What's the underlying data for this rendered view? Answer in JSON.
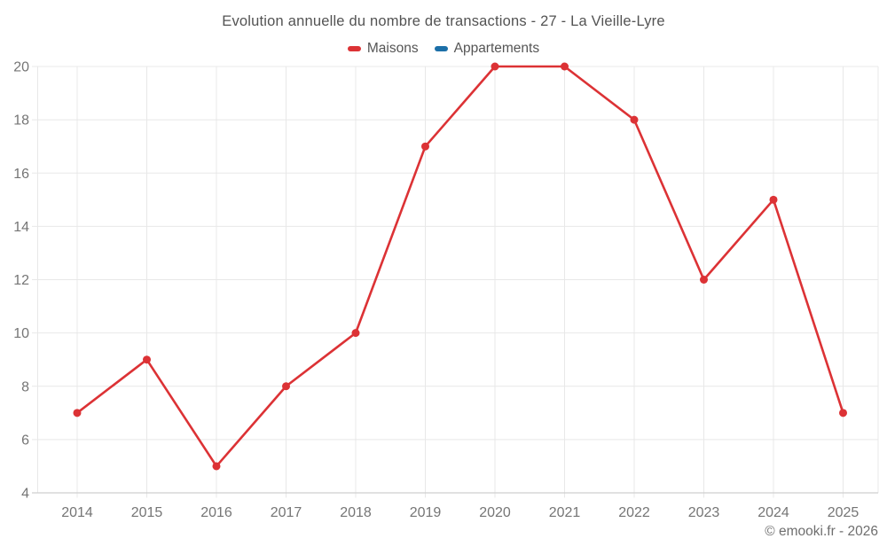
{
  "page": {
    "title": "Evolution annuelle du nombre de transactions - 27 - La Vieille-Lyre",
    "footer": "© emooki.fr - 2026"
  },
  "legend": {
    "items": [
      {
        "label": "Maisons",
        "color": "#dc3235"
      },
      {
        "label": "Appartements",
        "color": "#1c6fa8"
      }
    ]
  },
  "chart_data": {
    "type": "line",
    "title": "Evolution annuelle du nombre de transactions - 27 - La Vieille-Lyre",
    "categories": [
      "2014",
      "2015",
      "2016",
      "2017",
      "2018",
      "2019",
      "2020",
      "2021",
      "2022",
      "2023",
      "2024",
      "2025"
    ],
    "series": [
      {
        "name": "Maisons",
        "color": "#dc3235",
        "values": [
          7,
          9,
          5,
          8,
          10,
          17,
          20,
          20,
          18,
          12,
          15,
          7
        ]
      },
      {
        "name": "Appartements",
        "color": "#1c6fa8",
        "values": []
      }
    ],
    "ylim": [
      4,
      20
    ],
    "yticks": [
      4,
      6,
      8,
      10,
      12,
      14,
      16,
      18,
      20
    ],
    "grid": true,
    "legend_position": "top",
    "marker_radius": 4.5,
    "line_width": 2.6,
    "style": {
      "grid_color": "#e8e8e8",
      "axis_color": "#cfcfcf",
      "tick_label_color": "#757575",
      "background": "#ffffff"
    }
  }
}
